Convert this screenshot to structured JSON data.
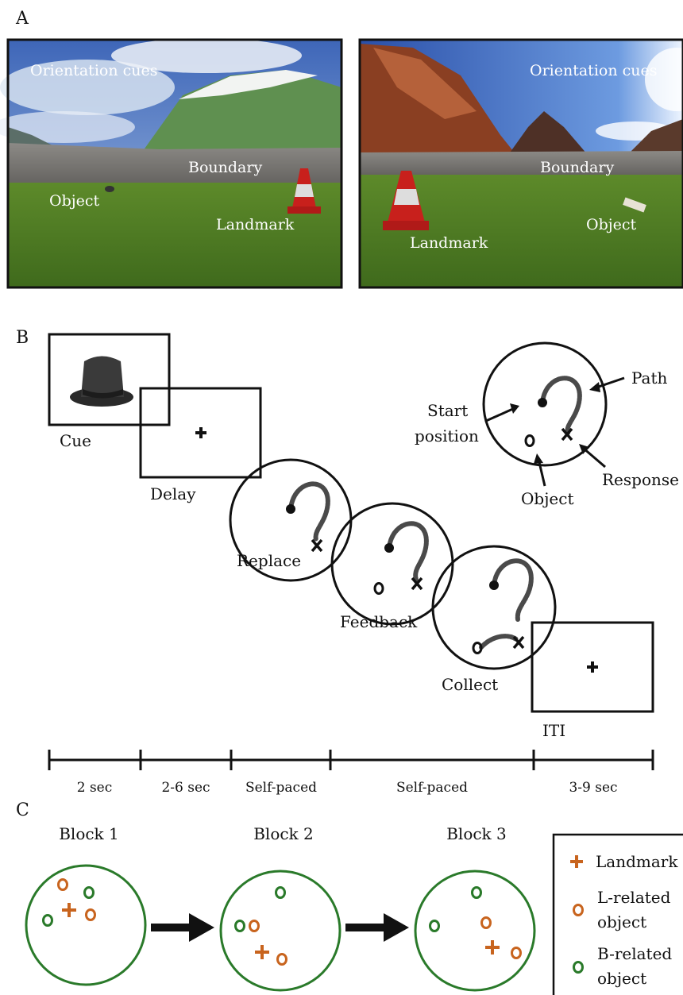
{
  "panel_a": {
    "label": "A",
    "left": [
      "Orientation cues",
      "Boundary",
      "Object",
      "Landmark"
    ],
    "right": [
      "Orientation cues",
      "Boundary",
      "Landmark",
      "Object"
    ]
  },
  "panel_b": {
    "label": "B",
    "stages": [
      "Cue",
      "Delay",
      "Replace",
      "Feedback",
      "Collect",
      "ITI"
    ],
    "inset": [
      "Path",
      "Start",
      "position",
      "Response",
      "Object"
    ],
    "timeline": [
      "2 sec",
      "2-6 sec",
      "Self-paced",
      "Self-paced",
      "3-9 sec"
    ]
  },
  "panel_c": {
    "label": "C",
    "blocks": [
      "Block 1",
      "Block 2",
      "Block 3"
    ],
    "legend": [
      "Landmark",
      "L-related",
      "object",
      "B-related",
      "object"
    ]
  }
}
